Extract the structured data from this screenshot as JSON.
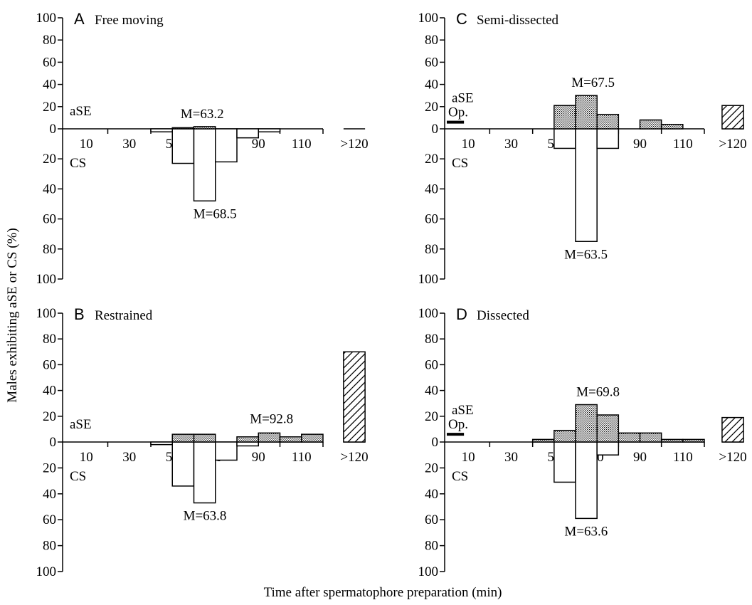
{
  "chart_data": {
    "type": "bar",
    "ylabel": "Males exhibiting aSE or CS (%)",
    "xlabel": "Time after spermatophore preparation (min)",
    "x_tick_labels": [
      "10",
      "30",
      "50",
      "70",
      "90",
      "110",
      ">120"
    ],
    "y_tick_labels": [
      "100",
      "80",
      "60",
      "40",
      "20",
      "0",
      "20",
      "40",
      "60",
      "80",
      "100"
    ],
    "ylim_up": [
      0,
      100
    ],
    "ylim_down": [
      0,
      100
    ],
    "xlim": [
      0,
      120
    ],
    "bin_width": 10,
    "bin_starts": [
      0,
      10,
      20,
      30,
      40,
      50,
      60,
      70,
      80,
      90,
      100,
      110
    ],
    "legend": {
      "aSE": "aSE",
      "CS": "CS",
      "op": "Op."
    },
    "panels": [
      {
        "letter": "A",
        "title": "Free moving",
        "ase": [
          0,
          0,
          0,
          0,
          0,
          1,
          2,
          0,
          0,
          0,
          0,
          0
        ],
        "ase_over_120": 0,
        "cs": [
          0,
          0,
          0,
          0,
          2,
          23,
          48,
          22,
          6,
          2,
          0,
          0
        ],
        "op_value": null,
        "ase_mean_label": "M=63.2",
        "cs_mean_label": "M=68.5",
        "ase_mean": 63.2,
        "cs_mean": 68.5
      },
      {
        "letter": "B",
        "title": "Restrained",
        "ase": [
          0,
          0,
          0,
          0,
          0,
          6,
          6,
          0,
          4,
          7,
          4,
          6
        ],
        "ase_over_120": 70,
        "cs": [
          0,
          0,
          0,
          0,
          2,
          34,
          47,
          14,
          3,
          0,
          0,
          0
        ],
        "op_value": null,
        "ase_mean_label": "M=92.8",
        "cs_mean_label": "M=63.8",
        "ase_mean": 92.8,
        "cs_mean": 63.8
      },
      {
        "letter": "C",
        "title": "Semi-dissected",
        "ase": [
          0,
          0,
          0,
          0,
          0,
          21,
          30,
          13,
          0,
          8,
          4,
          0
        ],
        "ase_over_120": 21,
        "cs": [
          0,
          0,
          0,
          0,
          0,
          13,
          75,
          13,
          0,
          0,
          0,
          0
        ],
        "op_value": 6,
        "ase_mean_label": "M=67.5",
        "cs_mean_label": "M=63.5",
        "ase_mean": 67.5,
        "cs_mean": 63.5
      },
      {
        "letter": "D",
        "title": "Dissected",
        "ase": [
          0,
          0,
          0,
          0,
          2,
          9,
          29,
          21,
          7,
          7,
          2,
          2
        ],
        "ase_over_120": 19,
        "cs": [
          0,
          0,
          0,
          0,
          0,
          31,
          59,
          10,
          0,
          0,
          0,
          0
        ],
        "op_value": 6,
        "ase_mean_label": "M=69.8",
        "cs_mean_label": "M=63.6",
        "ase_mean": 69.8,
        "cs_mean": 63.6
      }
    ]
  }
}
